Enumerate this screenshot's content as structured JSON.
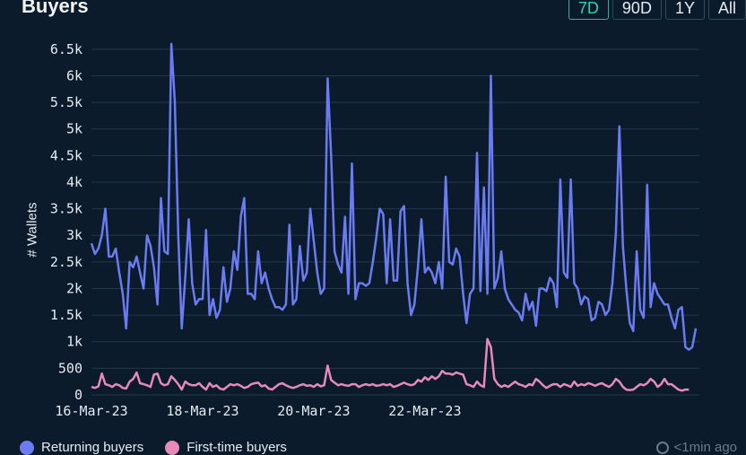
{
  "header": {
    "title": "Buyers",
    "ranges": [
      "7D",
      "90D",
      "1Y",
      "All"
    ],
    "active_range": "7D"
  },
  "footer": {
    "updated": "<1min ago"
  },
  "colors": {
    "returning": "#6b7bf2",
    "first_time": "#e58ab9",
    "grid": "#23384c",
    "active_tab": "#2fd1b0"
  },
  "chart_data": {
    "type": "line",
    "ylabel": "# Wallets",
    "xlabel": "",
    "ylim": [
      0,
      6750
    ],
    "yticks": [
      0,
      500,
      1000,
      1500,
      2000,
      2500,
      3000,
      3500,
      4000,
      4500,
      5000,
      5500,
      6000,
      6500
    ],
    "ytick_labels": [
      "0",
      "500",
      "1k",
      "1.5k",
      "2k",
      "2.5k",
      "3k",
      "3.5k",
      "4k",
      "4.5k",
      "5k",
      "5.5k",
      "6k",
      "6.5k"
    ],
    "x_start": "16-Mar-23",
    "x_step_hours": 1.5,
    "xtick_labels": [
      {
        "label": "16-Mar-23",
        "index": 0
      },
      {
        "label": "18-Mar-23",
        "index": 32
      },
      {
        "label": "20-Mar-23",
        "index": 64
      },
      {
        "label": "22-Mar-23",
        "index": 96
      }
    ],
    "series": [
      {
        "name": "Returning buyers",
        "values": [
          2850,
          2650,
          2750,
          3000,
          3500,
          2600,
          2600,
          2750,
          2300,
          1900,
          1250,
          2500,
          2400,
          2600,
          2300,
          2000,
          3000,
          2800,
          2400,
          1700,
          3700,
          2700,
          2650,
          6600,
          5500,
          3000,
          1250,
          2200,
          3300,
          2100,
          1700,
          1800,
          1800,
          3100,
          1500,
          1800,
          1450,
          1600,
          2400,
          1750,
          2000,
          2700,
          2350,
          3350,
          3700,
          1900,
          1900,
          1800,
          2700,
          2100,
          2300,
          2000,
          1800,
          1650,
          1650,
          1600,
          1700,
          3200,
          1700,
          1800,
          2800,
          2150,
          2300,
          3500,
          2900,
          2300,
          1900,
          2000,
          5950,
          4500,
          2700,
          2450,
          2300,
          3350,
          1900,
          4350,
          1800,
          2100,
          2100,
          2050,
          2100,
          2500,
          2950,
          3500,
          3400,
          2100,
          3300,
          2150,
          2150,
          3450,
          3550,
          2100,
          1500,
          1700,
          2400,
          3300,
          2300,
          2400,
          2300,
          2100,
          2500,
          2000,
          4100,
          2500,
          2450,
          2750,
          2600,
          1900,
          1350,
          1900,
          2000,
          4550,
          1950,
          3900,
          1900,
          6000,
          2000,
          2200,
          2700,
          2000,
          1800,
          1700,
          1600,
          1550,
          1400,
          1900,
          1600,
          1750,
          1300,
          2000,
          2000,
          1950,
          2200,
          2100,
          1650,
          4050,
          2300,
          2200,
          4050,
          2100,
          2000,
          1700,
          1850,
          1800,
          1400,
          1450,
          1750,
          1700,
          1500,
          1600,
          2100,
          3050,
          5050,
          2800,
          2000,
          1350,
          1200,
          2700,
          1600,
          1450,
          3950,
          1650,
          2100,
          1900,
          1800,
          1700,
          1700,
          1450,
          1250,
          1600,
          1650,
          900,
          850,
          900,
          1250
        ]
      },
      {
        "name": "First-time buyers",
        "values": [
          150,
          130,
          160,
          400,
          200,
          180,
          150,
          200,
          180,
          130,
          120,
          250,
          300,
          420,
          220,
          200,
          180,
          150,
          380,
          400,
          220,
          180,
          200,
          350,
          280,
          200,
          100,
          250,
          200,
          180,
          180,
          220,
          150,
          100,
          220,
          150,
          180,
          120,
          100,
          150,
          200,
          180,
          200,
          170,
          130,
          150,
          200,
          220,
          230,
          160,
          180,
          120,
          100,
          150,
          200,
          220,
          180,
          150,
          130,
          150,
          180,
          200,
          170,
          180,
          150,
          200,
          160,
          180,
          550,
          280,
          230,
          180,
          200,
          180,
          170,
          200,
          200,
          150,
          180,
          200,
          180,
          200,
          170,
          180,
          200,
          180,
          200,
          150,
          170,
          200,
          230,
          200,
          180,
          200,
          280,
          250,
          330,
          280,
          350,
          300,
          350,
          450,
          400,
          400,
          380,
          420,
          400,
          380,
          200,
          180,
          150,
          250,
          180,
          150,
          1050,
          900,
          300,
          200,
          150,
          180,
          150,
          200,
          250,
          200,
          180,
          150,
          200,
          180,
          300,
          250,
          180,
          130,
          170,
          200,
          200,
          150,
          200,
          180,
          150,
          250,
          170,
          200,
          180,
          220,
          200,
          170,
          200,
          220,
          180,
          150,
          200,
          300,
          250,
          150,
          100,
          90,
          100,
          150,
          200,
          180,
          220,
          300,
          250,
          150,
          200,
          300,
          200,
          200,
          150,
          100,
          80,
          100,
          100
        ]
      }
    ]
  }
}
